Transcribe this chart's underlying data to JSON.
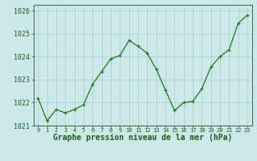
{
  "x": [
    0,
    1,
    2,
    3,
    4,
    5,
    6,
    7,
    8,
    9,
    10,
    11,
    12,
    13,
    14,
    15,
    16,
    17,
    18,
    19,
    20,
    21,
    22,
    23
  ],
  "y": [
    1022.2,
    1021.2,
    1021.7,
    1021.55,
    1021.7,
    1021.9,
    1022.8,
    1023.35,
    1023.9,
    1024.05,
    1024.7,
    1024.45,
    1024.15,
    1023.45,
    1022.55,
    1021.65,
    1022.0,
    1022.05,
    1022.6,
    1023.55,
    1024.0,
    1024.3,
    1025.45,
    1025.8
  ],
  "line_color": "#1a7a1a",
  "marker": "+",
  "marker_size": 3,
  "marker_lw": 0.8,
  "line_width": 0.9,
  "bg_color": "#cce8e8",
  "grid_color": "#aacece",
  "xlabel": "Graphe pression niveau de la mer (hPa)",
  "xlabel_color": "#1a5c1a",
  "xlabel_fontsize": 7,
  "tick_color": "#1a5c1a",
  "ytick_fontsize": 6,
  "xtick_fontsize": 5,
  "ylim": [
    1021.0,
    1026.25
  ],
  "yticks": [
    1021,
    1022,
    1023,
    1024,
    1025,
    1026
  ],
  "xlim": [
    -0.5,
    23.5
  ],
  "xticks": [
    0,
    1,
    2,
    3,
    4,
    5,
    6,
    7,
    8,
    9,
    10,
    11,
    12,
    13,
    14,
    15,
    16,
    17,
    18,
    19,
    20,
    21,
    22,
    23
  ],
  "spine_color": "#336633"
}
